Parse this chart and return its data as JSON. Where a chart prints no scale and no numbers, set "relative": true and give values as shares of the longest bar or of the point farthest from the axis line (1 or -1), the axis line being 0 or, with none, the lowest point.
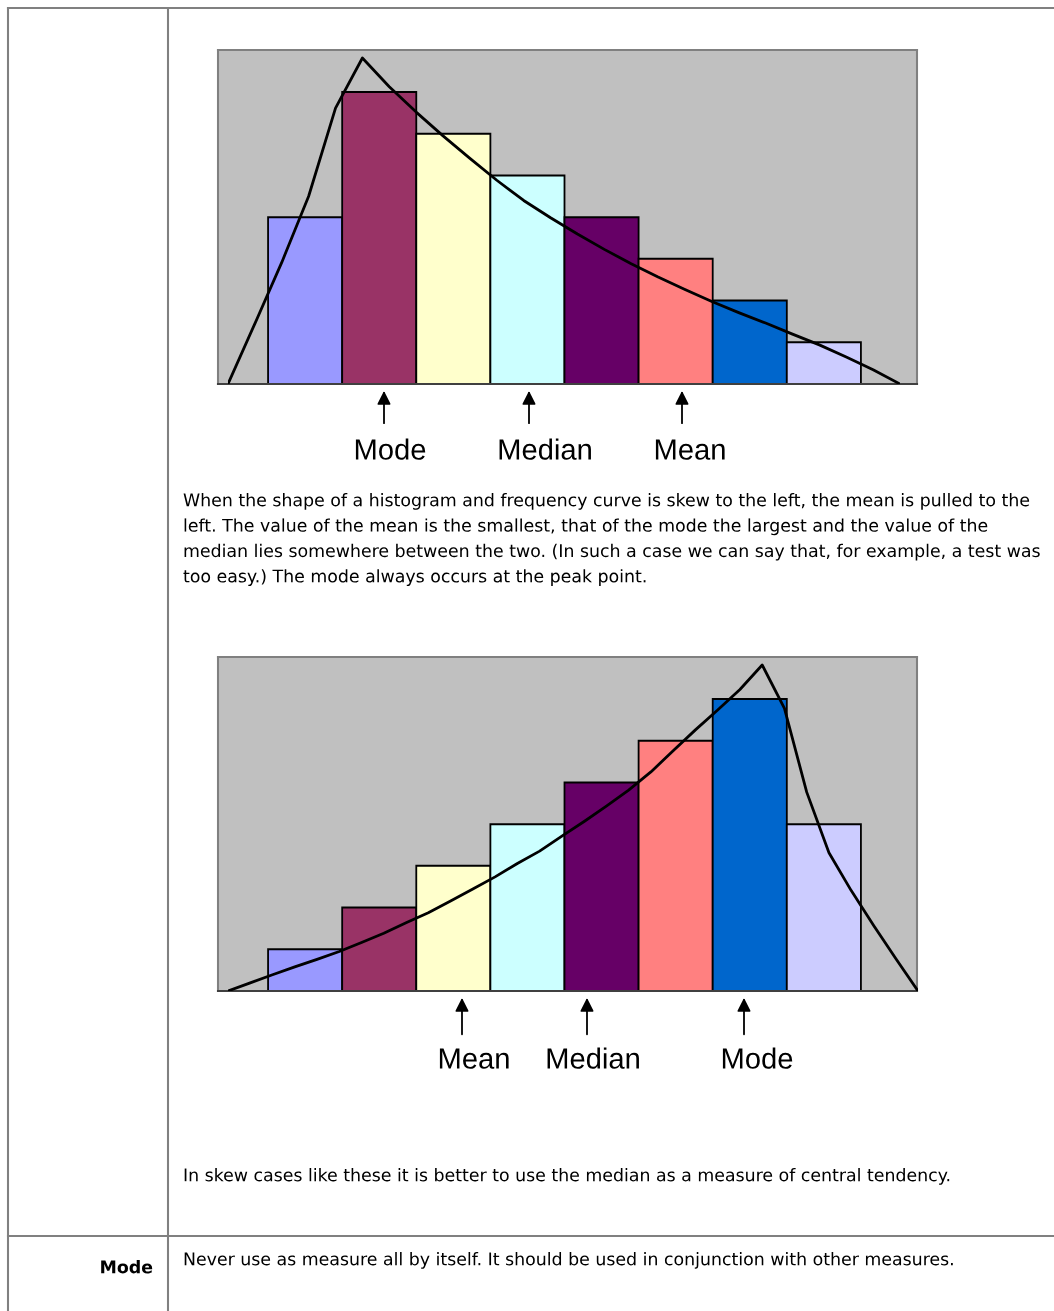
{
  "chart_data": [
    {
      "type": "bar",
      "relative": true,
      "tick_labels": false,
      "categories": [
        null,
        null,
        null,
        null,
        null,
        null,
        null,
        null
      ],
      "values": [
        0.571,
        1,
        0.857,
        0.714,
        0.571,
        0.429,
        0.286,
        0.143
      ],
      "colors": [
        "#9999ff",
        "#993366",
        "#ffffcc",
        "#ccffff",
        "#660066",
        "#ff8080",
        "#0066cc",
        "#ccccff"
      ],
      "annotations": [
        "Mode",
        "Median",
        "Mean",
        "When the shape of a histogram and frequency curve is skew to the left, the mean is pulled to the left. The value of the mean is the smallest, that of the mode the largest and the value of the median lies somewhere between the two. (In such a case we can say that, for example, a test was too easy.) The mode always occurs at the peak point."
      ]
    },
    {
      "type": "line",
      "relative": true,
      "tick_labels": false,
      "categories": [
        null,
        null,
        null,
        null,
        null,
        null,
        null,
        null,
        null,
        null,
        null,
        null,
        null,
        null,
        null,
        null,
        null,
        null,
        null,
        null,
        null,
        null,
        null,
        null,
        null,
        null
      ],
      "series": [
        {
          "color": "#000000",
          "values": [
            0,
            0.185,
            0.373,
            0.576,
            0.846,
            1.0,
            0.912,
            0.834,
            0.761,
            0.692,
            0.625,
            0.563,
            0.51,
            0.46,
            0.413,
            0.369,
            0.328,
            0.29,
            0.253,
            0.219,
            0.187,
            0.153,
            0.12,
            0.083,
            0.044,
            0
          ]
        }
      ]
    },
    {
      "type": "bar",
      "relative": true,
      "tick_labels": false,
      "categories": [
        null,
        null,
        null,
        null,
        null,
        null,
        null,
        null
      ],
      "values": [
        0.143,
        0.286,
        0.429,
        0.571,
        0.714,
        0.857,
        1,
        0.571
      ],
      "colors": [
        "#9999ff",
        "#993366",
        "#ffffcc",
        "#ccffff",
        "#660066",
        "#ff8080",
        "#0066cc",
        "#ccccff"
      ],
      "annotations": [
        "Mean",
        "Median",
        "Mode",
        "In skew cases like these it is better to use the median as a measure of central tendency.",
        "Mode",
        "Never use as measure all by itself. It should be used in conjunction with other measures."
      ]
    },
    {
      "type": "line",
      "relative": true,
      "tick_labels": false,
      "categories": [
        null,
        null,
        null,
        null,
        null,
        null,
        null,
        null,
        null,
        null,
        null,
        null,
        null,
        null,
        null,
        null,
        null,
        null,
        null,
        null,
        null,
        null,
        null,
        null,
        null,
        null,
        null,
        null,
        null,
        null,
        null,
        null
      ],
      "series": [
        {
          "color": "#000000",
          "values": [
            0,
            0.025,
            0.05,
            0.074,
            0.097,
            0.121,
            0.149,
            0.177,
            0.209,
            0.24,
            0.276,
            0.313,
            0.35,
            0.391,
            0.429,
            0.475,
            0.52,
            0.567,
            0.616,
            0.672,
            0.737,
            0.801,
            0.862,
            0.925,
            1.0,
            0.867,
            0.61,
            0.424,
            0.308,
            0.202,
            0.1,
            0
          ]
        }
      ]
    }
  ]
}
